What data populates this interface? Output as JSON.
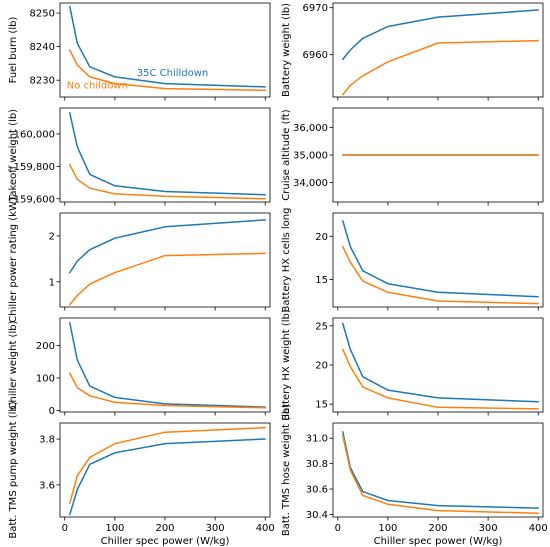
{
  "chart_data": [
    {
      "type": "line",
      "ylabel": "Fuel burn (lb)",
      "x": [
        10,
        25,
        50,
        100,
        200,
        400
      ],
      "ylim": [
        8225,
        8253
      ],
      "yticks": [
        8230,
        8240,
        8250
      ],
      "ytick_labels": [
        "8230",
        "8240",
        "8250"
      ],
      "series": [
        {
          "name": "35C Chilldown",
          "color": "#1f77b4",
          "values": [
            8252,
            8241,
            8234,
            8231,
            8229,
            8228
          ]
        },
        {
          "name": "No childown",
          "color": "#ff7f0e",
          "values": [
            8239,
            8234.5,
            8231,
            8229,
            8227.5,
            8227
          ]
        }
      ],
      "annotations": [
        {
          "text": "35C Chilldown",
          "color": "#1f77b4",
          "x": 215,
          "y": 8231.3
        },
        {
          "text": "No childown",
          "color": "#ff7f0e",
          "x": 4,
          "y": 8227.5
        }
      ]
    },
    {
      "type": "line",
      "ylabel": "Battery weight (lb)",
      "x": [
        10,
        25,
        50,
        100,
        200,
        400
      ],
      "ylim": [
        6951,
        6971
      ],
      "yticks": [
        6960,
        6970
      ],
      "ytick_labels": [
        "6960",
        "6970"
      ],
      "series": [
        {
          "name": "35C Chilldown",
          "color": "#1f77b4",
          "values": [
            6959,
            6961,
            6963.5,
            6966,
            6968,
            6969.5
          ]
        },
        {
          "name": "No childown",
          "color": "#ff7f0e",
          "values": [
            6951.5,
            6953.5,
            6955.5,
            6958.5,
            6962.5,
            6963
          ]
        }
      ]
    },
    {
      "type": "line",
      "ylabel": "Takeoff weight (lb)",
      "x": [
        10,
        25,
        50,
        100,
        200,
        400
      ],
      "ylim": [
        159580,
        160160
      ],
      "yticks": [
        159600,
        159800,
        160000
      ],
      "ytick_labels": [
        "159,600",
        "159,800",
        "160,000"
      ],
      "series": [
        {
          "name": "35C Chilldown",
          "color": "#1f77b4",
          "values": [
            160130,
            159920,
            159750,
            159680,
            159645,
            159625
          ]
        },
        {
          "name": "No childown",
          "color": "#ff7f0e",
          "values": [
            159810,
            159720,
            159665,
            159630,
            159615,
            159600
          ]
        }
      ]
    },
    {
      "type": "line",
      "ylabel": "Cruise altitude (ft)",
      "x": [
        10,
        25,
        50,
        100,
        200,
        400
      ],
      "ylim": [
        33300,
        36700
      ],
      "yticks": [
        34000,
        35000,
        36000
      ],
      "ytick_labels": [
        "34,000",
        "35,000",
        "36,000"
      ],
      "series": [
        {
          "name": "35C Chilldown",
          "color": "#1f77b4",
          "values": [
            35000,
            35000,
            35000,
            35000,
            35000,
            35000
          ]
        },
        {
          "name": "No childown",
          "color": "#ff7f0e",
          "values": [
            35000,
            35000,
            35000,
            35000,
            35000,
            35000
          ]
        }
      ]
    },
    {
      "type": "line",
      "ylabel": "Chiller power rating (kW)",
      "x": [
        10,
        25,
        50,
        100,
        200,
        400
      ],
      "ylim": [
        0.45,
        2.5
      ],
      "yticks": [
        1,
        2
      ],
      "ytick_labels": [
        "1",
        "2"
      ],
      "series": [
        {
          "name": "35C Chilldown",
          "color": "#1f77b4",
          "values": [
            1.2,
            1.45,
            1.7,
            1.95,
            2.2,
            2.35
          ]
        },
        {
          "name": "No childown",
          "color": "#ff7f0e",
          "values": [
            0.5,
            0.7,
            0.95,
            1.2,
            1.57,
            1.62
          ]
        }
      ]
    },
    {
      "type": "line",
      "ylabel": "Battery HX cells long",
      "x": [
        10,
        25,
        50,
        100,
        200,
        400
      ],
      "ylim": [
        11.8,
        22.7
      ],
      "yticks": [
        15,
        20
      ],
      "ytick_labels": [
        "15",
        "20"
      ],
      "series": [
        {
          "name": "35C Chilldown",
          "color": "#1f77b4",
          "values": [
            21.8,
            18.8,
            16,
            14.5,
            13.5,
            13
          ]
        },
        {
          "name": "No childown",
          "color": "#ff7f0e",
          "values": [
            18.8,
            17,
            14.8,
            13.5,
            12.5,
            12.2
          ]
        }
      ]
    },
    {
      "type": "line",
      "ylabel": "Chiller weight (lb)",
      "x": [
        10,
        25,
        50,
        100,
        200,
        400
      ],
      "ylim": [
        -5,
        285
      ],
      "yticks": [
        0,
        100,
        200
      ],
      "ytick_labels": [
        "0",
        "100",
        "200"
      ],
      "series": [
        {
          "name": "35C Chilldown",
          "color": "#1f77b4",
          "values": [
            270,
            155,
            75,
            40,
            20,
            10
          ]
        },
        {
          "name": "No childown",
          "color": "#ff7f0e",
          "values": [
            115,
            70,
            45,
            25,
            15,
            8
          ]
        }
      ]
    },
    {
      "type": "line",
      "ylabel": "Battery HX weight (lb)",
      "x": [
        10,
        25,
        50,
        100,
        200,
        400
      ],
      "ylim": [
        14,
        26
      ],
      "yticks": [
        15,
        20,
        25
      ],
      "ytick_labels": [
        "15",
        "20",
        "25"
      ],
      "series": [
        {
          "name": "35C Chilldown",
          "color": "#1f77b4",
          "values": [
            25.3,
            22,
            18.5,
            16.8,
            15.8,
            15.3
          ]
        },
        {
          "name": "No childown",
          "color": "#ff7f0e",
          "values": [
            22,
            19.8,
            17.2,
            15.8,
            14.6,
            14.4
          ]
        }
      ]
    },
    {
      "type": "line",
      "ylabel": "Batt. TMS pump weight (lb)",
      "x": [
        10,
        25,
        50,
        100,
        200,
        400
      ],
      "ylim": [
        3.46,
        3.87
      ],
      "yticks": [
        3.6,
        3.8
      ],
      "ytick_labels": [
        "3.6",
        "3.8"
      ],
      "xticks": [
        0,
        100,
        200,
        300,
        400
      ],
      "xtick_labels": [
        "0",
        "100",
        "200",
        "300",
        "400"
      ],
      "xlabel": "Chiller spec power (W/kg)",
      "series": [
        {
          "name": "35C Chilldown",
          "color": "#1f77b4",
          "values": [
            3.47,
            3.58,
            3.69,
            3.74,
            3.78,
            3.8
          ]
        },
        {
          "name": "No childown",
          "color": "#ff7f0e",
          "values": [
            3.52,
            3.64,
            3.72,
            3.78,
            3.83,
            3.85
          ]
        }
      ]
    },
    {
      "type": "line",
      "ylabel": "Batt. TMS hose weight (lb)",
      "x": [
        10,
        25,
        50,
        100,
        200,
        400
      ],
      "ylim": [
        30.38,
        31.12
      ],
      "yticks": [
        30.4,
        30.6,
        30.8,
        31.0
      ],
      "ytick_labels": [
        "30.4",
        "30.6",
        "30.8",
        "31.0"
      ],
      "xticks": [
        0,
        100,
        200,
        300,
        400
      ],
      "xtick_labels": [
        "0",
        "100",
        "200",
        "300",
        "400"
      ],
      "xlabel": "Chiller spec power (W/kg)",
      "series": [
        {
          "name": "35C Chilldown",
          "color": "#1f77b4",
          "values": [
            31.05,
            30.77,
            30.58,
            30.51,
            30.47,
            30.45
          ]
        },
        {
          "name": "No childown",
          "color": "#ff7f0e",
          "values": [
            31.02,
            30.75,
            30.55,
            30.48,
            30.43,
            30.41
          ]
        }
      ]
    }
  ]
}
